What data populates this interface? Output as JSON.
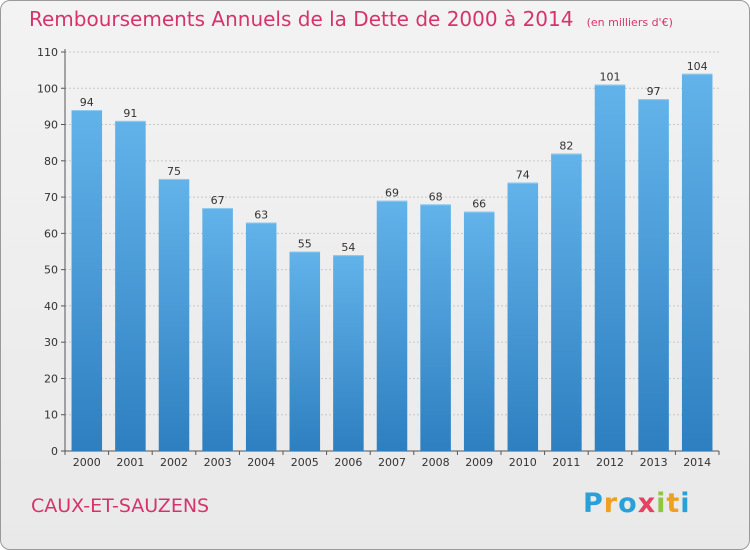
{
  "header": {
    "title": "Remboursements Annuels de la Dette de 2000 à 2014",
    "unit": "(en milliers d'€)"
  },
  "footer": {
    "city": "CAUX-ET-SAUZENS",
    "logo": [
      "P",
      "r",
      "o",
      "x",
      "i",
      "t",
      "i"
    ],
    "logo_colors": [
      "#2aa0d8",
      "#f0a020",
      "#2aa0d8",
      "#e84060",
      "#8dc63f",
      "#f0a020",
      "#2aa0d8"
    ]
  },
  "colors": {
    "bar_light": "#5dade6",
    "bar_dark": "#2e7fc0",
    "grid": "#c8c8c8",
    "accent": "#d6336c"
  },
  "chart_data": {
    "type": "bar",
    "title": "Remboursements Annuels de la Dette de 2000 à 2014",
    "xlabel": "",
    "ylabel": "",
    "categories": [
      "2000",
      "2001",
      "2002",
      "2003",
      "2004",
      "2005",
      "2006",
      "2007",
      "2008",
      "2009",
      "2010",
      "2011",
      "2012",
      "2013",
      "2014"
    ],
    "values": [
      94,
      91,
      75,
      67,
      63,
      55,
      54,
      69,
      68,
      66,
      74,
      82,
      101,
      97,
      104
    ],
    "ylim": [
      0,
      110
    ],
    "yticks": [
      0,
      10,
      20,
      30,
      40,
      50,
      60,
      70,
      80,
      90,
      100,
      110
    ],
    "grid": true
  }
}
